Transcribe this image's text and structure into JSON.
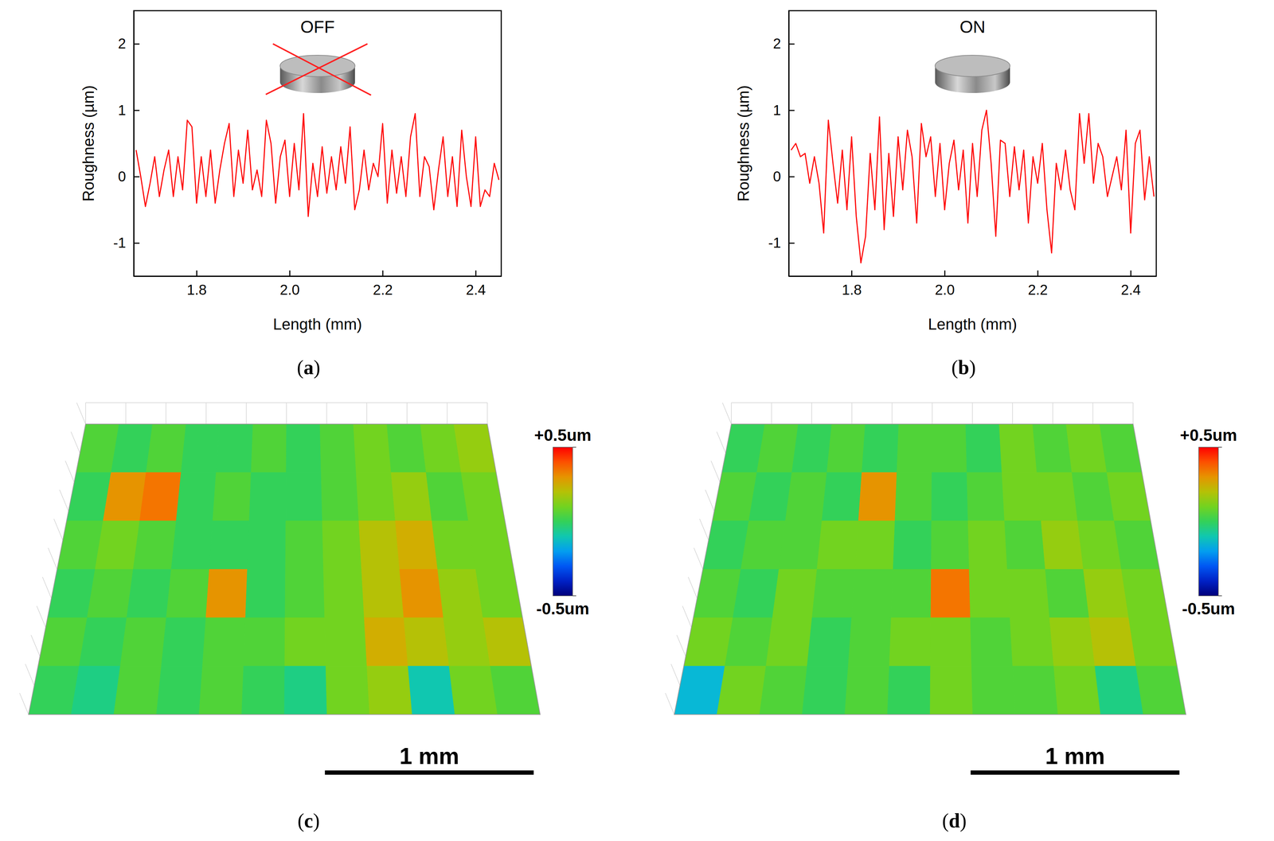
{
  "chart_data": [
    {
      "type": "line",
      "title": "OFF",
      "label": "(a)",
      "x_label": "Length (mm)",
      "y_label": "Roughness (µm)",
      "color": "#ff0000",
      "xlim": [
        1.665,
        2.455
      ],
      "xticks": [
        1.8,
        {
          "value": 2,
          "label": "2.0"
        },
        2.2,
        2.4
      ],
      "ylim": [
        -1.5,
        2.5
      ],
      "yticks": [
        -1,
        0,
        1,
        2
      ],
      "x": [
        1.67,
        1.68,
        1.69,
        1.7,
        1.71,
        1.72,
        1.73,
        1.74,
        1.75,
        1.76,
        1.77,
        1.78,
        1.79,
        1.8,
        1.81,
        1.82,
        1.83,
        1.84,
        1.85,
        1.86,
        1.87,
        1.88,
        1.89,
        1.9,
        1.91,
        1.92,
        1.93,
        1.94,
        1.95,
        1.96,
        1.97,
        1.98,
        1.99,
        2.0,
        2.01,
        2.02,
        2.03,
        2.04,
        2.05,
        2.06,
        2.07,
        2.08,
        2.09,
        2.1,
        2.11,
        2.12,
        2.13,
        2.14,
        2.15,
        2.16,
        2.17,
        2.18,
        2.19,
        2.2,
        2.21,
        2.22,
        2.23,
        2.24,
        2.25,
        2.26,
        2.27,
        2.28,
        2.29,
        2.3,
        2.31,
        2.32,
        2.33,
        2.34,
        2.35,
        2.36,
        2.37,
        2.38,
        2.39,
        2.4,
        2.41,
        2.42,
        2.43,
        2.44,
        2.45
      ],
      "values": [
        0.4,
        0.0,
        -0.45,
        -0.1,
        0.3,
        -0.3,
        0.1,
        0.4,
        -0.3,
        0.3,
        -0.2,
        0.85,
        0.75,
        -0.4,
        0.3,
        -0.3,
        0.4,
        -0.4,
        0.1,
        0.5,
        0.8,
        -0.3,
        0.4,
        -0.1,
        0.7,
        -0.2,
        0.1,
        -0.3,
        0.85,
        0.5,
        -0.4,
        0.3,
        0.55,
        -0.3,
        0.5,
        -0.2,
        0.95,
        -0.6,
        0.2,
        -0.3,
        0.45,
        -0.25,
        0.3,
        -0.2,
        0.45,
        -0.1,
        0.75,
        -0.5,
        -0.2,
        0.4,
        -0.2,
        0.2,
        0.0,
        0.8,
        -0.4,
        0.4,
        -0.25,
        0.3,
        -0.3,
        0.6,
        0.95,
        -0.3,
        0.3,
        0.15,
        -0.5,
        0.1,
        0.6,
        -0.3,
        0.3,
        -0.45,
        0.7,
        0.0,
        -0.45,
        0.6,
        -0.45,
        -0.2,
        -0.3,
        0.2,
        -0.05
      ]
    },
    {
      "type": "line",
      "title": "ON",
      "label": "(b)",
      "x_label": "Length (mm)",
      "y_label": "Roughness (µm)",
      "color": "#ff0000",
      "xlim": [
        1.665,
        2.455
      ],
      "xticks": [
        1.8,
        {
          "value": 2,
          "label": "2.0"
        },
        2.2,
        2.4
      ],
      "ylim": [
        -1.5,
        2.5
      ],
      "yticks": [
        -1,
        0,
        1,
        2
      ],
      "x": [
        1.67,
        1.68,
        1.69,
        1.7,
        1.71,
        1.72,
        1.73,
        1.74,
        1.75,
        1.76,
        1.77,
        1.78,
        1.79,
        1.8,
        1.81,
        1.82,
        1.83,
        1.84,
        1.85,
        1.86,
        1.87,
        1.88,
        1.89,
        1.9,
        1.91,
        1.92,
        1.93,
        1.94,
        1.95,
        1.96,
        1.97,
        1.98,
        1.99,
        2.0,
        2.01,
        2.02,
        2.03,
        2.04,
        2.05,
        2.06,
        2.07,
        2.08,
        2.09,
        2.1,
        2.11,
        2.12,
        2.13,
        2.14,
        2.15,
        2.16,
        2.17,
        2.18,
        2.19,
        2.2,
        2.21,
        2.22,
        2.23,
        2.24,
        2.25,
        2.26,
        2.27,
        2.28,
        2.29,
        2.3,
        2.31,
        2.32,
        2.33,
        2.34,
        2.35,
        2.36,
        2.37,
        2.38,
        2.39,
        2.4,
        2.41,
        2.42,
        2.43,
        2.44,
        2.45
      ],
      "values": [
        0.4,
        0.5,
        0.3,
        0.35,
        -0.1,
        0.3,
        -0.1,
        -0.85,
        0.85,
        0.2,
        -0.4,
        0.4,
        -0.5,
        0.6,
        -0.6,
        -1.3,
        -0.9,
        0.35,
        -0.5,
        0.9,
        -0.8,
        0.35,
        -0.6,
        0.6,
        -0.2,
        0.7,
        0.3,
        -0.7,
        0.8,
        0.3,
        0.6,
        -0.3,
        0.5,
        -0.5,
        0.2,
        0.55,
        -0.2,
        0.4,
        -0.7,
        0.5,
        -0.3,
        0.7,
        1.0,
        0.2,
        -0.9,
        0.55,
        0.5,
        -0.3,
        0.45,
        -0.2,
        0.4,
        -0.7,
        0.3,
        -0.1,
        0.5,
        -0.5,
        -1.15,
        0.2,
        -0.2,
        0.4,
        -0.2,
        -0.5,
        0.95,
        0.2,
        0.95,
        -0.1,
        0.5,
        0.3,
        -0.3,
        0.0,
        0.3,
        -0.2,
        0.7,
        -0.85,
        0.5,
        0.7,
        -0.35,
        0.3,
        -0.3
      ]
    },
    {
      "type": "surface",
      "label": "(c)",
      "tick_labels": false,
      "xlim": [
        0,
        2.45
      ],
      "ylim": [
        0,
        1.8
      ],
      "cells": [
        [
          0.05,
          0.0,
          0.05,
          0.0,
          0.0,
          0.05,
          0.0,
          0.05,
          0.1,
          0.05,
          0.1,
          0.15
        ],
        [
          0.0,
          0.3,
          0.35,
          0.0,
          0.05,
          0.0,
          0.0,
          0.05,
          0.1,
          0.15,
          0.05,
          0.1
        ],
        [
          0.05,
          0.1,
          0.05,
          0.0,
          0.0,
          0.0,
          0.05,
          0.1,
          0.2,
          0.25,
          0.1,
          0.1
        ],
        [
          0.0,
          0.05,
          0.0,
          0.05,
          0.3,
          0.0,
          0.05,
          0.1,
          0.2,
          0.3,
          0.15,
          0.1
        ],
        [
          0.05,
          0.0,
          0.05,
          0.0,
          0.05,
          0.05,
          0.1,
          0.1,
          0.25,
          0.2,
          0.15,
          0.2
        ],
        [
          0.0,
          -0.05,
          0.05,
          0.0,
          0.05,
          0.0,
          -0.05,
          0.1,
          0.15,
          -0.1,
          0.1,
          0.05
        ]
      ],
      "colorbar_range": [
        -0.5,
        0.5
      ],
      "colorbar_ticks": [
        {
          "value": 0.5,
          "label": "+0.5um"
        },
        {
          "value": -0.5,
          "label": "-0.5um"
        }
      ],
      "scale_bar": {
        "value": 1,
        "label": "1 mm"
      }
    },
    {
      "type": "surface",
      "label": "(d)",
      "tick_labels": false,
      "xlim": [
        0,
        2.45
      ],
      "ylim": [
        0,
        1.8
      ],
      "cells": [
        [
          0.0,
          0.05,
          0.0,
          0.05,
          0.0,
          0.05,
          0.05,
          0.0,
          0.1,
          0.05,
          0.1,
          0.05
        ],
        [
          0.05,
          0.0,
          0.05,
          0.0,
          0.3,
          0.05,
          0.0,
          0.05,
          0.1,
          0.1,
          0.05,
          0.1
        ],
        [
          0.0,
          0.05,
          0.05,
          0.1,
          0.1,
          0.0,
          0.05,
          0.1,
          0.05,
          0.15,
          0.1,
          0.05
        ],
        [
          0.05,
          0.0,
          0.1,
          0.05,
          0.05,
          0.05,
          0.35,
          0.1,
          0.1,
          0.05,
          0.15,
          0.1
        ],
        [
          0.1,
          0.05,
          0.1,
          0.0,
          0.05,
          0.1,
          0.1,
          0.05,
          0.1,
          0.15,
          0.2,
          0.1
        ],
        [
          -0.15,
          0.1,
          0.05,
          0.0,
          0.05,
          0.0,
          0.1,
          0.05,
          0.05,
          0.1,
          -0.05,
          0.05
        ]
      ],
      "colorbar_range": [
        -0.5,
        0.5
      ],
      "colorbar_ticks": [
        {
          "value": 0.5,
          "label": "+0.5um"
        },
        {
          "value": -0.5,
          "label": "-0.5um"
        }
      ],
      "scale_bar": {
        "value": 1,
        "label": "1 mm"
      }
    }
  ]
}
